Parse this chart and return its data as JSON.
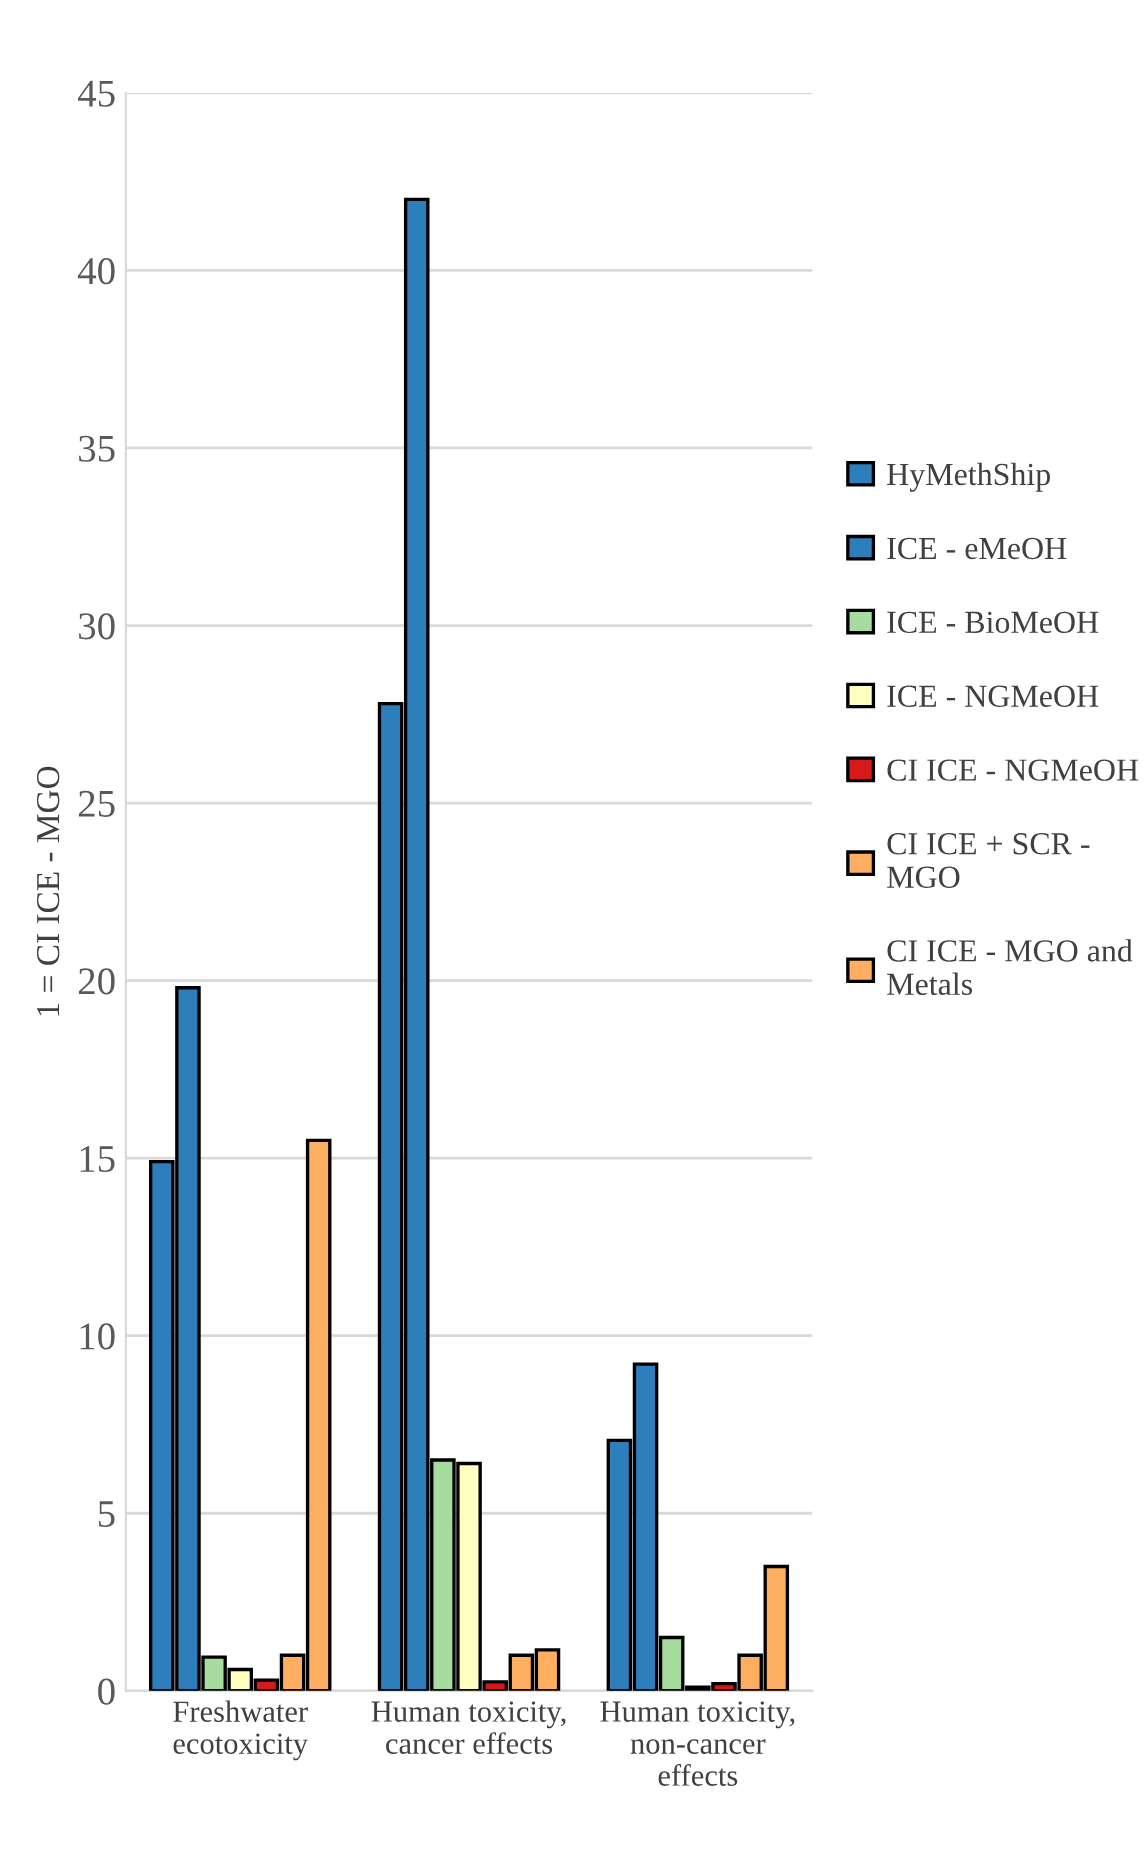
{
  "chart_data": {
    "type": "bar",
    "ylabel": "1 = CI ICE - MGO",
    "categories": [
      "Freshwater\necotoxicity",
      "Human toxicity,\ncancer effects",
      "Human toxicity,\nnon-cancer\neffects"
    ],
    "series": [
      {
        "name": "HyMethShip",
        "color": "#2e7ebb",
        "values": [
          14.9,
          27.8,
          7.05
        ]
      },
      {
        "name": "ICE - eMeOH",
        "color": "#2e7ebb",
        "values": [
          19.8,
          42.0,
          9.2
        ]
      },
      {
        "name": "ICE - BioMeOH",
        "color": "#a8dba0",
        "values": [
          0.95,
          6.5,
          1.5
        ]
      },
      {
        "name": "ICE - NGMeOH",
        "color": "#ffffbf",
        "values": [
          0.6,
          6.4,
          0.1
        ]
      },
      {
        "name": "CI ICE - NGMeOH",
        "color": "#d7191c",
        "values": [
          0.3,
          0.25,
          0.2
        ]
      },
      {
        "name": "CI ICE + SCR - MGO",
        "color": "#fdae61",
        "values": [
          1.0,
          1.0,
          1.0
        ]
      },
      {
        "name": "CI ICE - MGO and Metals",
        "color": "#fdae61",
        "values": [
          15.5,
          1.15,
          3.5
        ]
      }
    ],
    "ylim": [
      0,
      45
    ],
    "yticks": [
      0,
      5,
      10,
      15,
      20,
      25,
      30,
      35,
      40,
      45
    ],
    "grid": "y",
    "legend": "right"
  }
}
